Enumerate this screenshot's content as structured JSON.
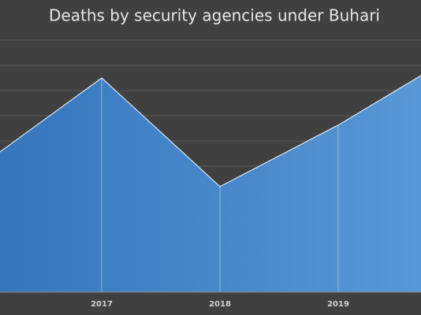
{
  "chart_data": {
    "type": "area",
    "title": "Deaths by security agencies under Buhari",
    "categories": [
      null,
      "2017",
      "2018",
      "2019",
      null
    ],
    "values": [
      5.09,
      8.5,
      4.19,
      6.63,
      9.44
    ],
    "color": "#4a8bd0",
    "ylim": [
      0,
      10
    ],
    "yticks": [
      0,
      1,
      2,
      3,
      4,
      5,
      6,
      7,
      8,
      9,
      10
    ],
    "grid": true
  }
}
